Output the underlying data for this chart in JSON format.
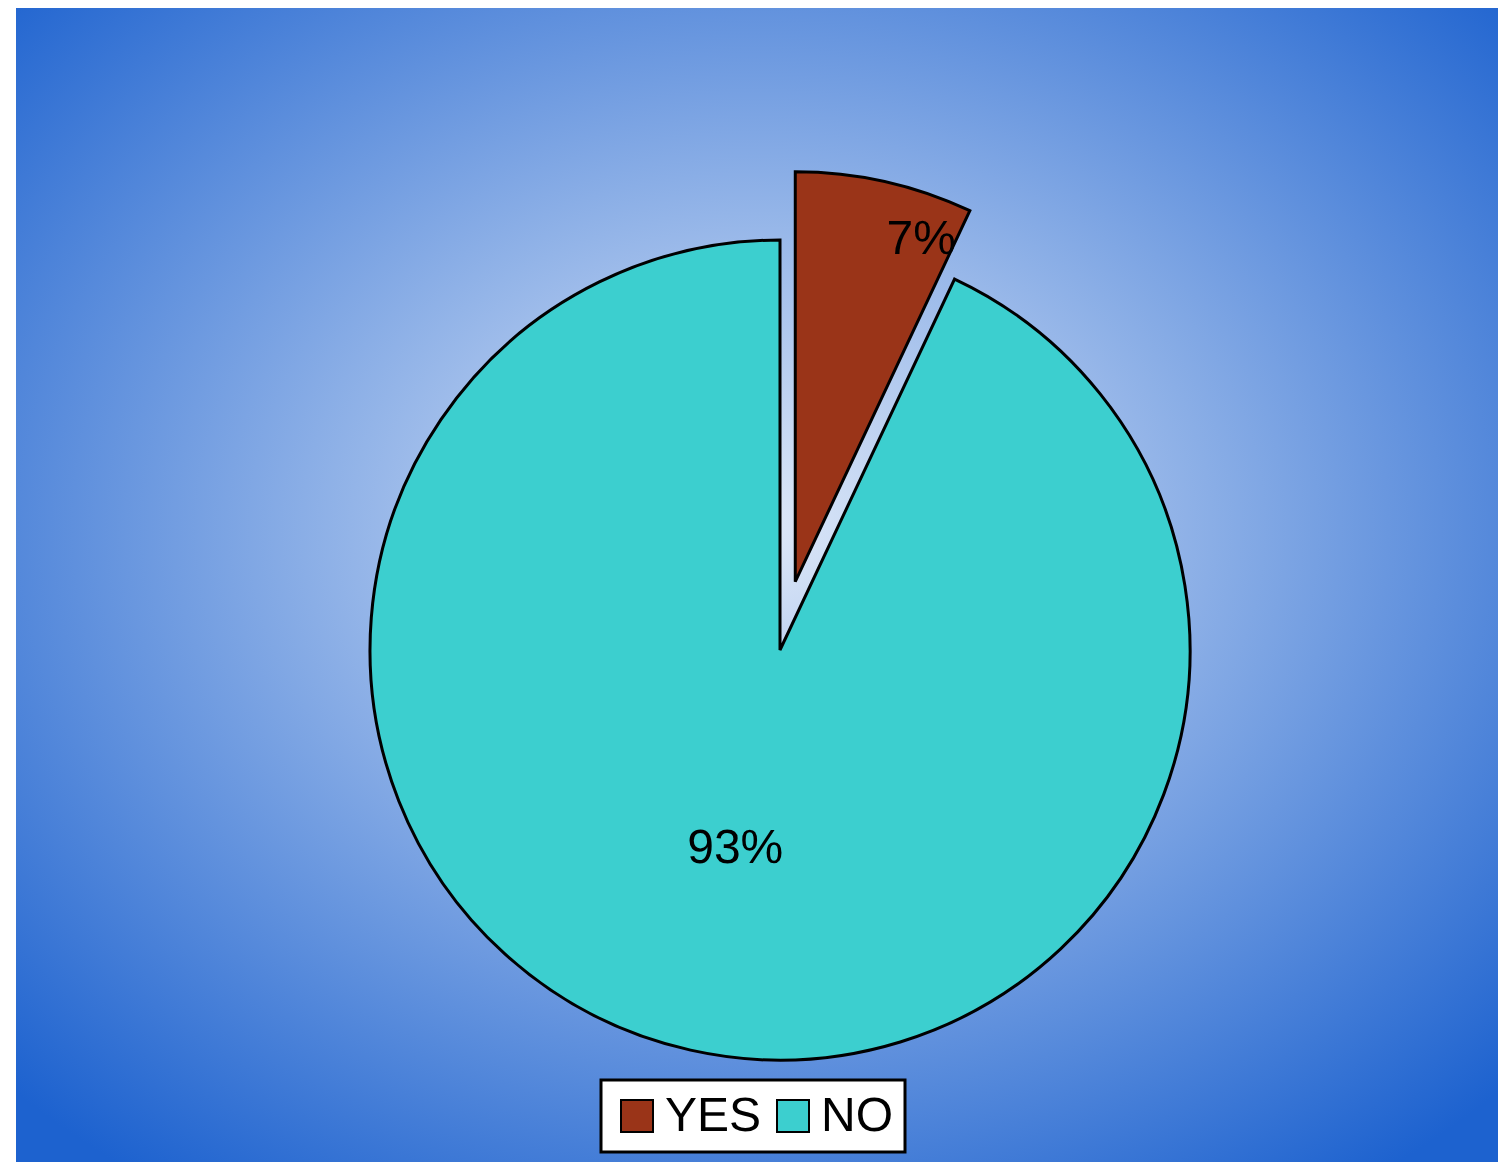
{
  "chart_data": {
    "type": "pie",
    "categories": [
      "YES",
      "NO"
    ],
    "values": [
      7,
      93
    ],
    "colors": [
      "#9a3418",
      "#3ccfcf"
    ],
    "value_labels": [
      "7%",
      "93%"
    ],
    "legend": "bottom"
  }
}
